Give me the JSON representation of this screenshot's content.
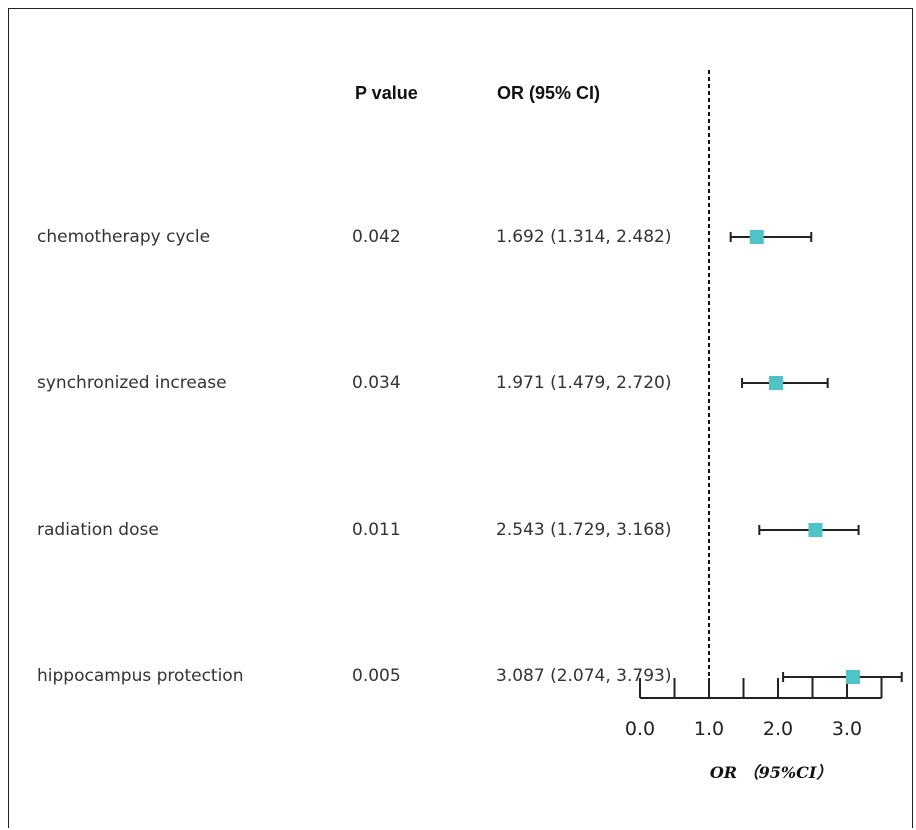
{
  "headers": {
    "p_value": "P value",
    "or_ci": "OR (95% CI)"
  },
  "rows": [
    {
      "label": "chemotherapy cycle",
      "p": "0.042",
      "ci_text": "1.692 (1.314, 2.482)"
    },
    {
      "label": "synchronized increase",
      "p": "0.034",
      "ci_text": "1.971 (1.479, 2.720)"
    },
    {
      "label": "radiation dose",
      "p": "0.011",
      "ci_text": "2.543 (1.729, 3.168)"
    },
    {
      "label": "hippocampus protection",
      "p": "0.005",
      "ci_text": "3.087 (2.074, 3.793)"
    }
  ],
  "chart_data": {
    "type": "forest",
    "categories": [
      "chemotherapy cycle",
      "synchronized increase",
      "radiation dose",
      "hippocampus protection"
    ],
    "estimate": [
      1.692,
      1.971,
      2.543,
      3.087
    ],
    "lower": [
      1.314,
      1.479,
      1.729,
      2.074
    ],
    "upper": [
      2.482,
      2.72,
      3.168,
      3.793
    ],
    "reference_line": 1.0,
    "xlim": [
      0.0,
      3.5
    ],
    "x_ticks": [
      0.0,
      0.5,
      1.0,
      1.5,
      2.0,
      2.5,
      3.0,
      3.5
    ],
    "x_tick_labels": [
      "0.0",
      "1.0",
      "2.0",
      "3.0"
    ],
    "x_tick_label_values": [
      0.0,
      1.0,
      2.0,
      3.0
    ],
    "xlabel": "OR （95%CI）",
    "marker_color": "#4fc3c8",
    "line_color": "#222222"
  }
}
